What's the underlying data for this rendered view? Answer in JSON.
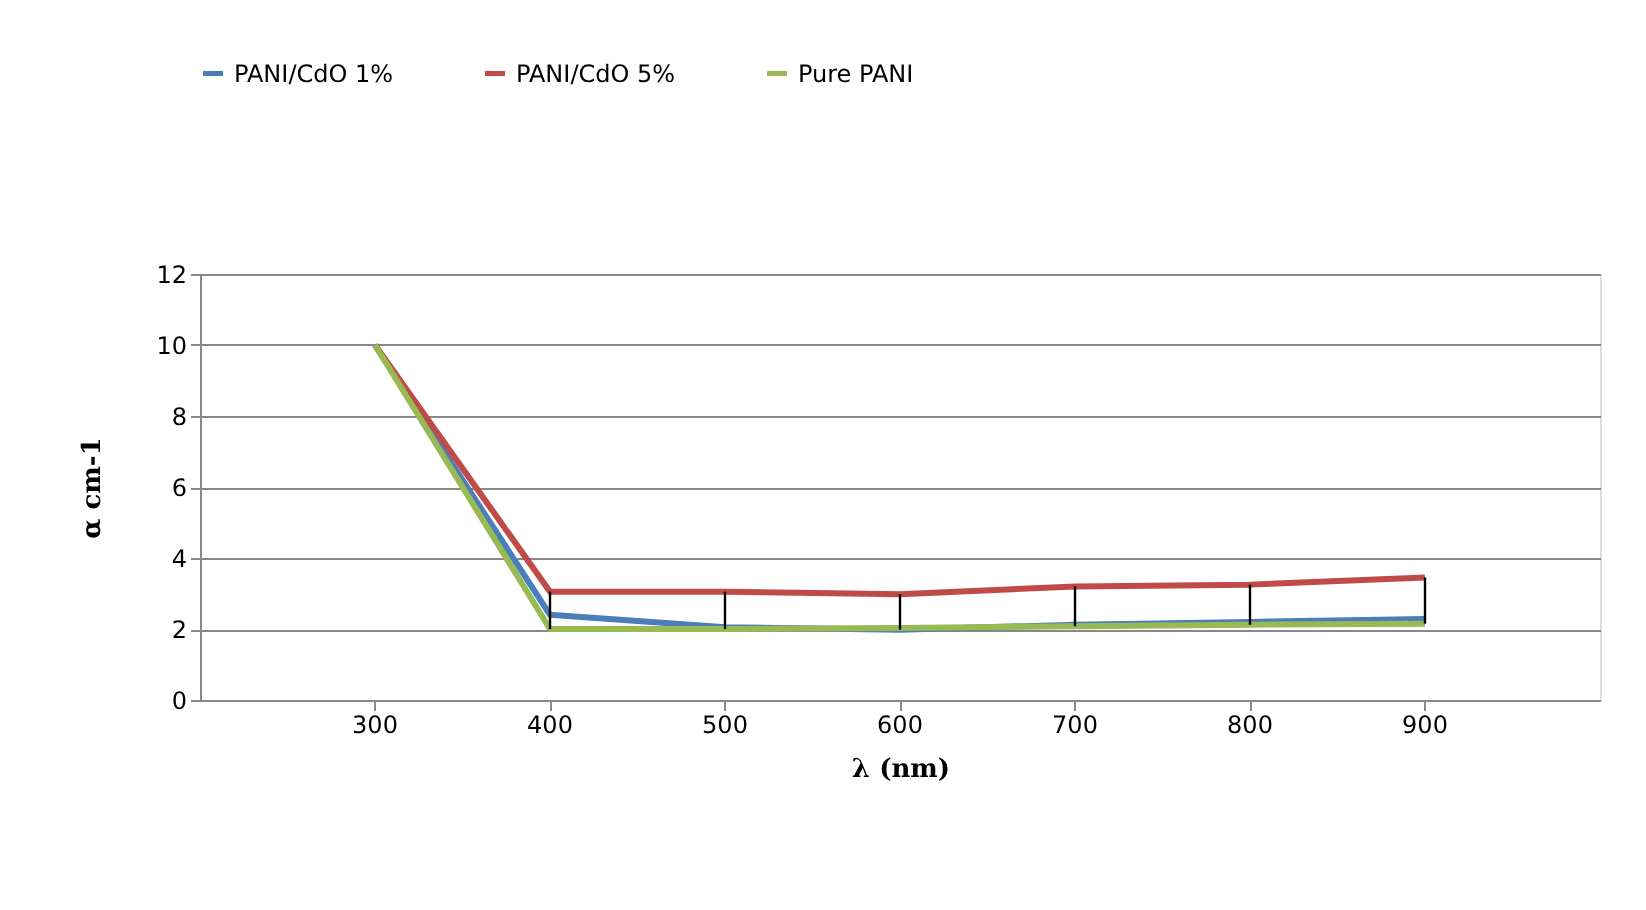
{
  "chart_data": {
    "type": "line",
    "xlabel": "λ (nm)",
    "ylabel": "α cm-1",
    "categories": [
      "300",
      "400",
      "500",
      "600",
      "700",
      "800",
      "900"
    ],
    "series": [
      {
        "name": "PANI/CdO 1%",
        "color": "#4a7ebb",
        "values": [
          10,
          2.4,
          2.05,
          1.98,
          2.12,
          2.2,
          2.28
        ]
      },
      {
        "name": "PANI/CdO 5%",
        "color": "#be4b48",
        "values": [
          10,
          3.05,
          3.05,
          2.98,
          3.2,
          3.25,
          3.45
        ]
      },
      {
        "name": "Pure PANI",
        "color": "#98b954",
        "values": [
          10,
          2.0,
          2.0,
          2.03,
          2.08,
          2.12,
          2.15
        ],
        "errors": [
          null,
          [
            2.0,
            3.05
          ],
          [
            2.0,
            3.05
          ],
          [
            1.98,
            2.98
          ],
          [
            2.08,
            3.2
          ],
          [
            2.12,
            3.25
          ],
          [
            2.15,
            3.45
          ]
        ]
      }
    ],
    "ylim": [
      0,
      12
    ],
    "yticks": [
      0,
      2,
      4,
      6,
      8,
      10,
      12
    ],
    "grid": "y",
    "legend": "top",
    "marker": "none",
    "line_style": "solid"
  }
}
